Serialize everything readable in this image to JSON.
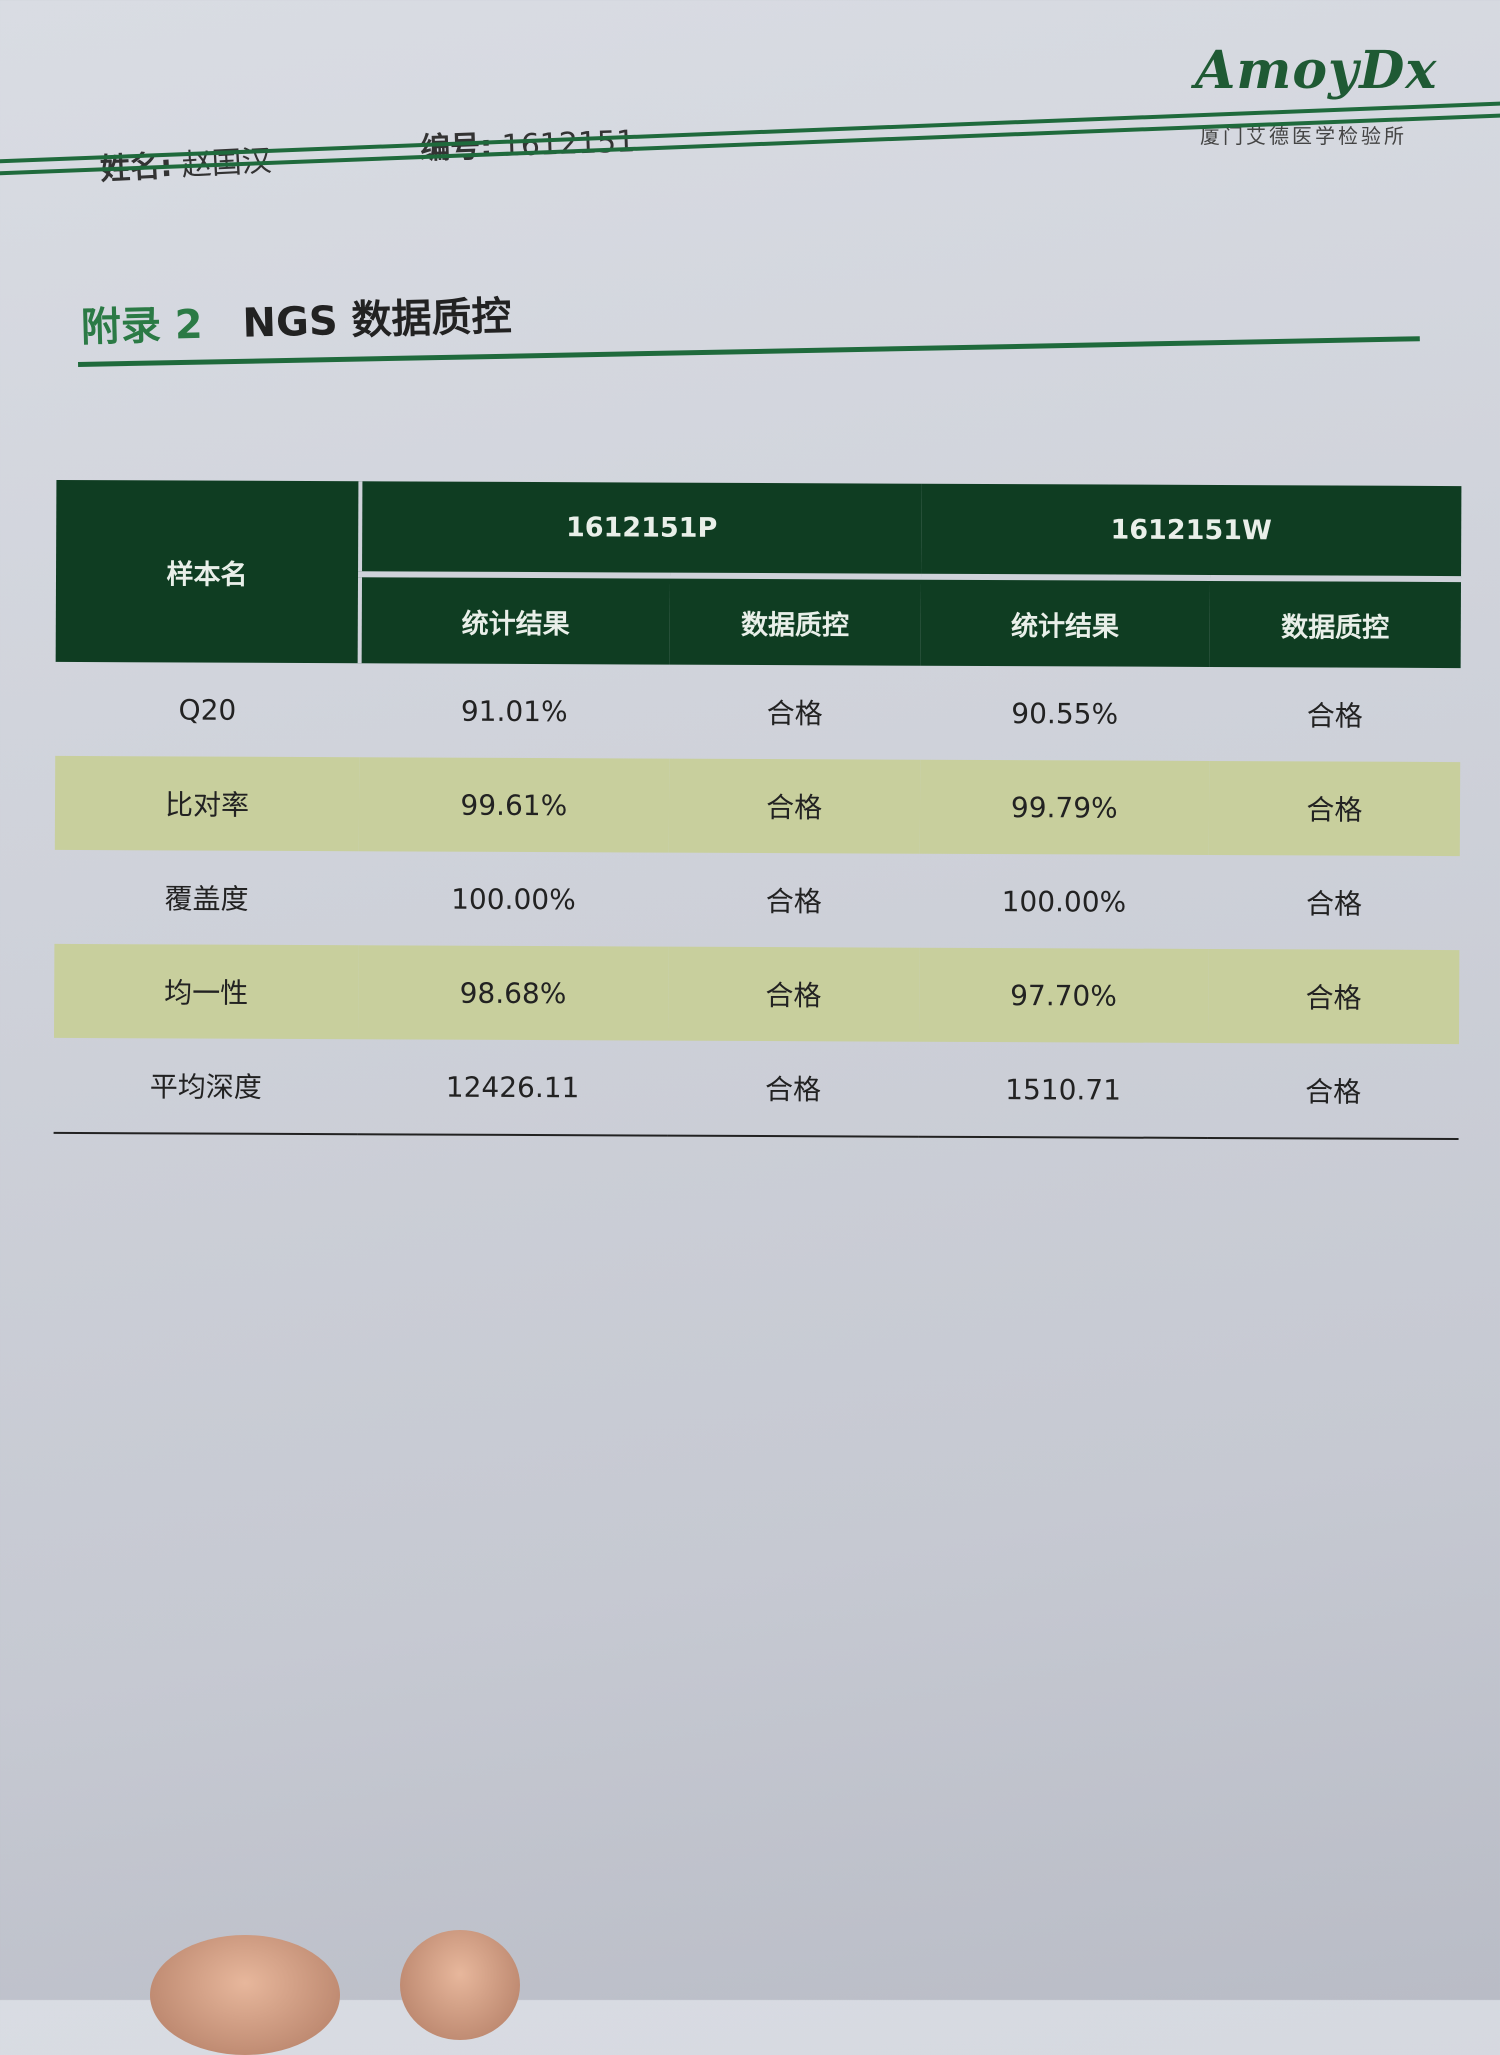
{
  "header": {
    "name_label": "姓名:",
    "name_value": "赵国汉",
    "id_label": "编号:",
    "id_value": "1612151",
    "logo_text": "AmoyDx",
    "lab_name": "厦门艾德医学检验所"
  },
  "section": {
    "prefix": "附录 2",
    "title": "NGS 数据质控"
  },
  "table": {
    "row_header": "样本名",
    "samples": [
      "1612151P",
      "1612151W"
    ],
    "sub_headers": [
      "统计结果",
      "数据质控",
      "统计结果",
      "数据质控"
    ],
    "rows": [
      {
        "metric": "Q20",
        "cells": [
          "91.01%",
          "合格",
          "90.55%",
          "合格"
        ]
      },
      {
        "metric": "比对率",
        "cells": [
          "99.61%",
          "合格",
          "99.79%",
          "合格"
        ]
      },
      {
        "metric": "覆盖度",
        "cells": [
          "100.00%",
          "合格",
          "100.00%",
          "合格"
        ]
      },
      {
        "metric": "均一性",
        "cells": [
          "98.68%",
          "合格",
          "97.70%",
          "合格"
        ]
      },
      {
        "metric": "平均深度",
        "cells": [
          "12426.11",
          "合格",
          "1510.71",
          "合格"
        ]
      }
    ]
  },
  "colors": {
    "header_green": "#0f3d22",
    "band": "#c8cf9d",
    "accent": "#1f6a3c"
  }
}
